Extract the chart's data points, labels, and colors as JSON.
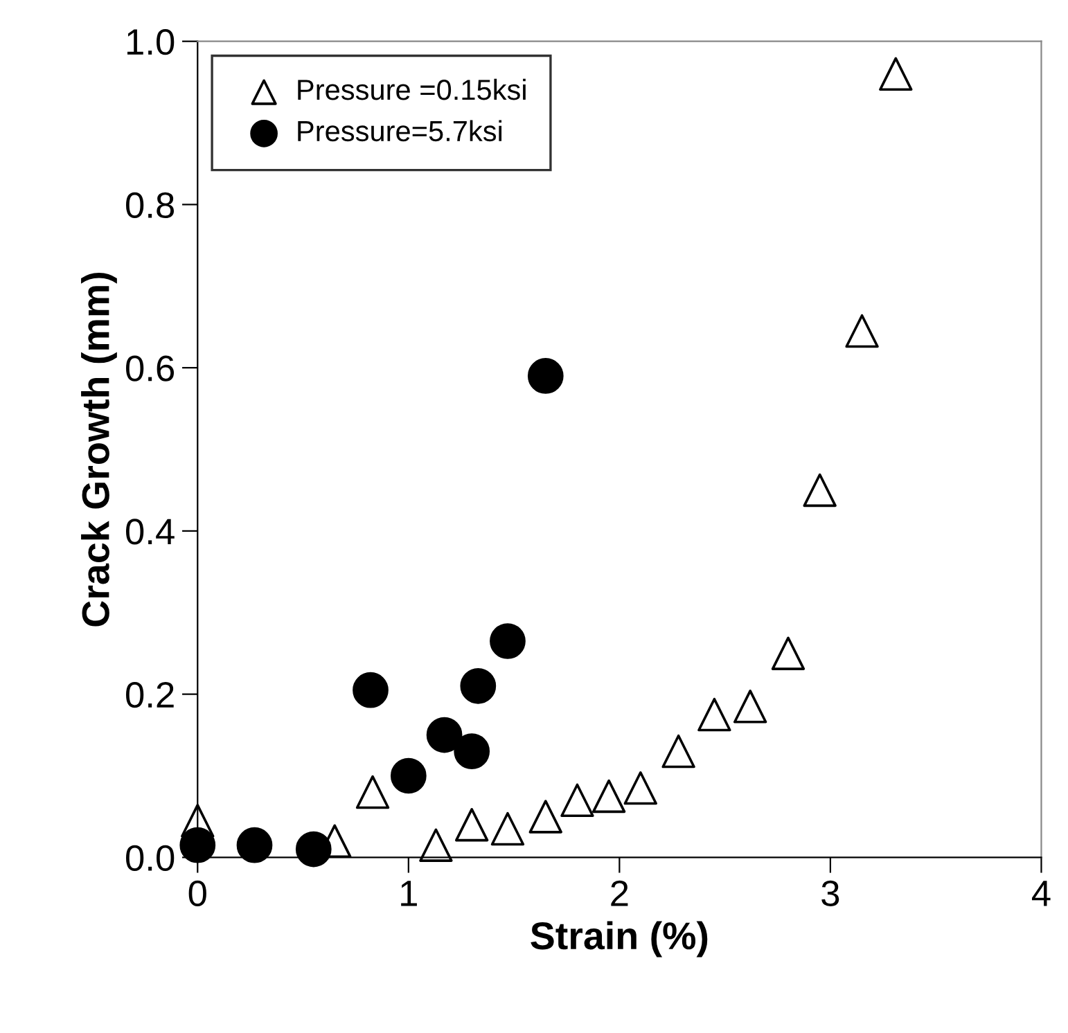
{
  "chart_data": {
    "type": "scatter",
    "xlabel": "Strain (%)",
    "ylabel": "Crack Growth (mm)",
    "xlim": [
      0,
      4
    ],
    "ylim": [
      0,
      1.0
    ],
    "xticks": [
      0,
      1,
      2,
      3,
      4
    ],
    "yticks": [
      {
        "value": 0,
        "label": "0.0"
      },
      {
        "value": 0.2,
        "label": "0.2"
      },
      {
        "value": 0.4,
        "label": "0.4"
      },
      {
        "value": 0.6,
        "label": "0.6"
      },
      {
        "value": 0.8,
        "label": "0.8"
      },
      {
        "value": 1.0,
        "label": "1.0"
      }
    ],
    "grid": false,
    "legend": "top left",
    "series": [
      {
        "name": "Pressure =0.15ksi",
        "color": "#000000",
        "marker": "triangle",
        "x": [
          0,
          0.65,
          0.83,
          1.13,
          1.3,
          1.47,
          1.65,
          1.8,
          1.95,
          2.1,
          2.28,
          2.45,
          2.62,
          2.8,
          2.95,
          3.15,
          3.31
        ],
        "values": [
          0.045,
          0.02,
          0.08,
          0.015,
          0.04,
          0.035,
          0.05,
          0.07,
          0.075,
          0.085,
          0.13,
          0.175,
          0.185,
          0.25,
          0.45,
          0.645,
          0.96
        ]
      },
      {
        "name": "Pressure=5.7ksi",
        "color": "#000000",
        "marker": "circle",
        "x": [
          0,
          0.27,
          0.55,
          0.82,
          1.0,
          1.17,
          1.3,
          1.33,
          1.47,
          1.65
        ],
        "values": [
          0.015,
          0.015,
          0.01,
          0.205,
          0.1,
          0.15,
          0.13,
          0.21,
          0.265,
          0.59
        ]
      }
    ]
  }
}
